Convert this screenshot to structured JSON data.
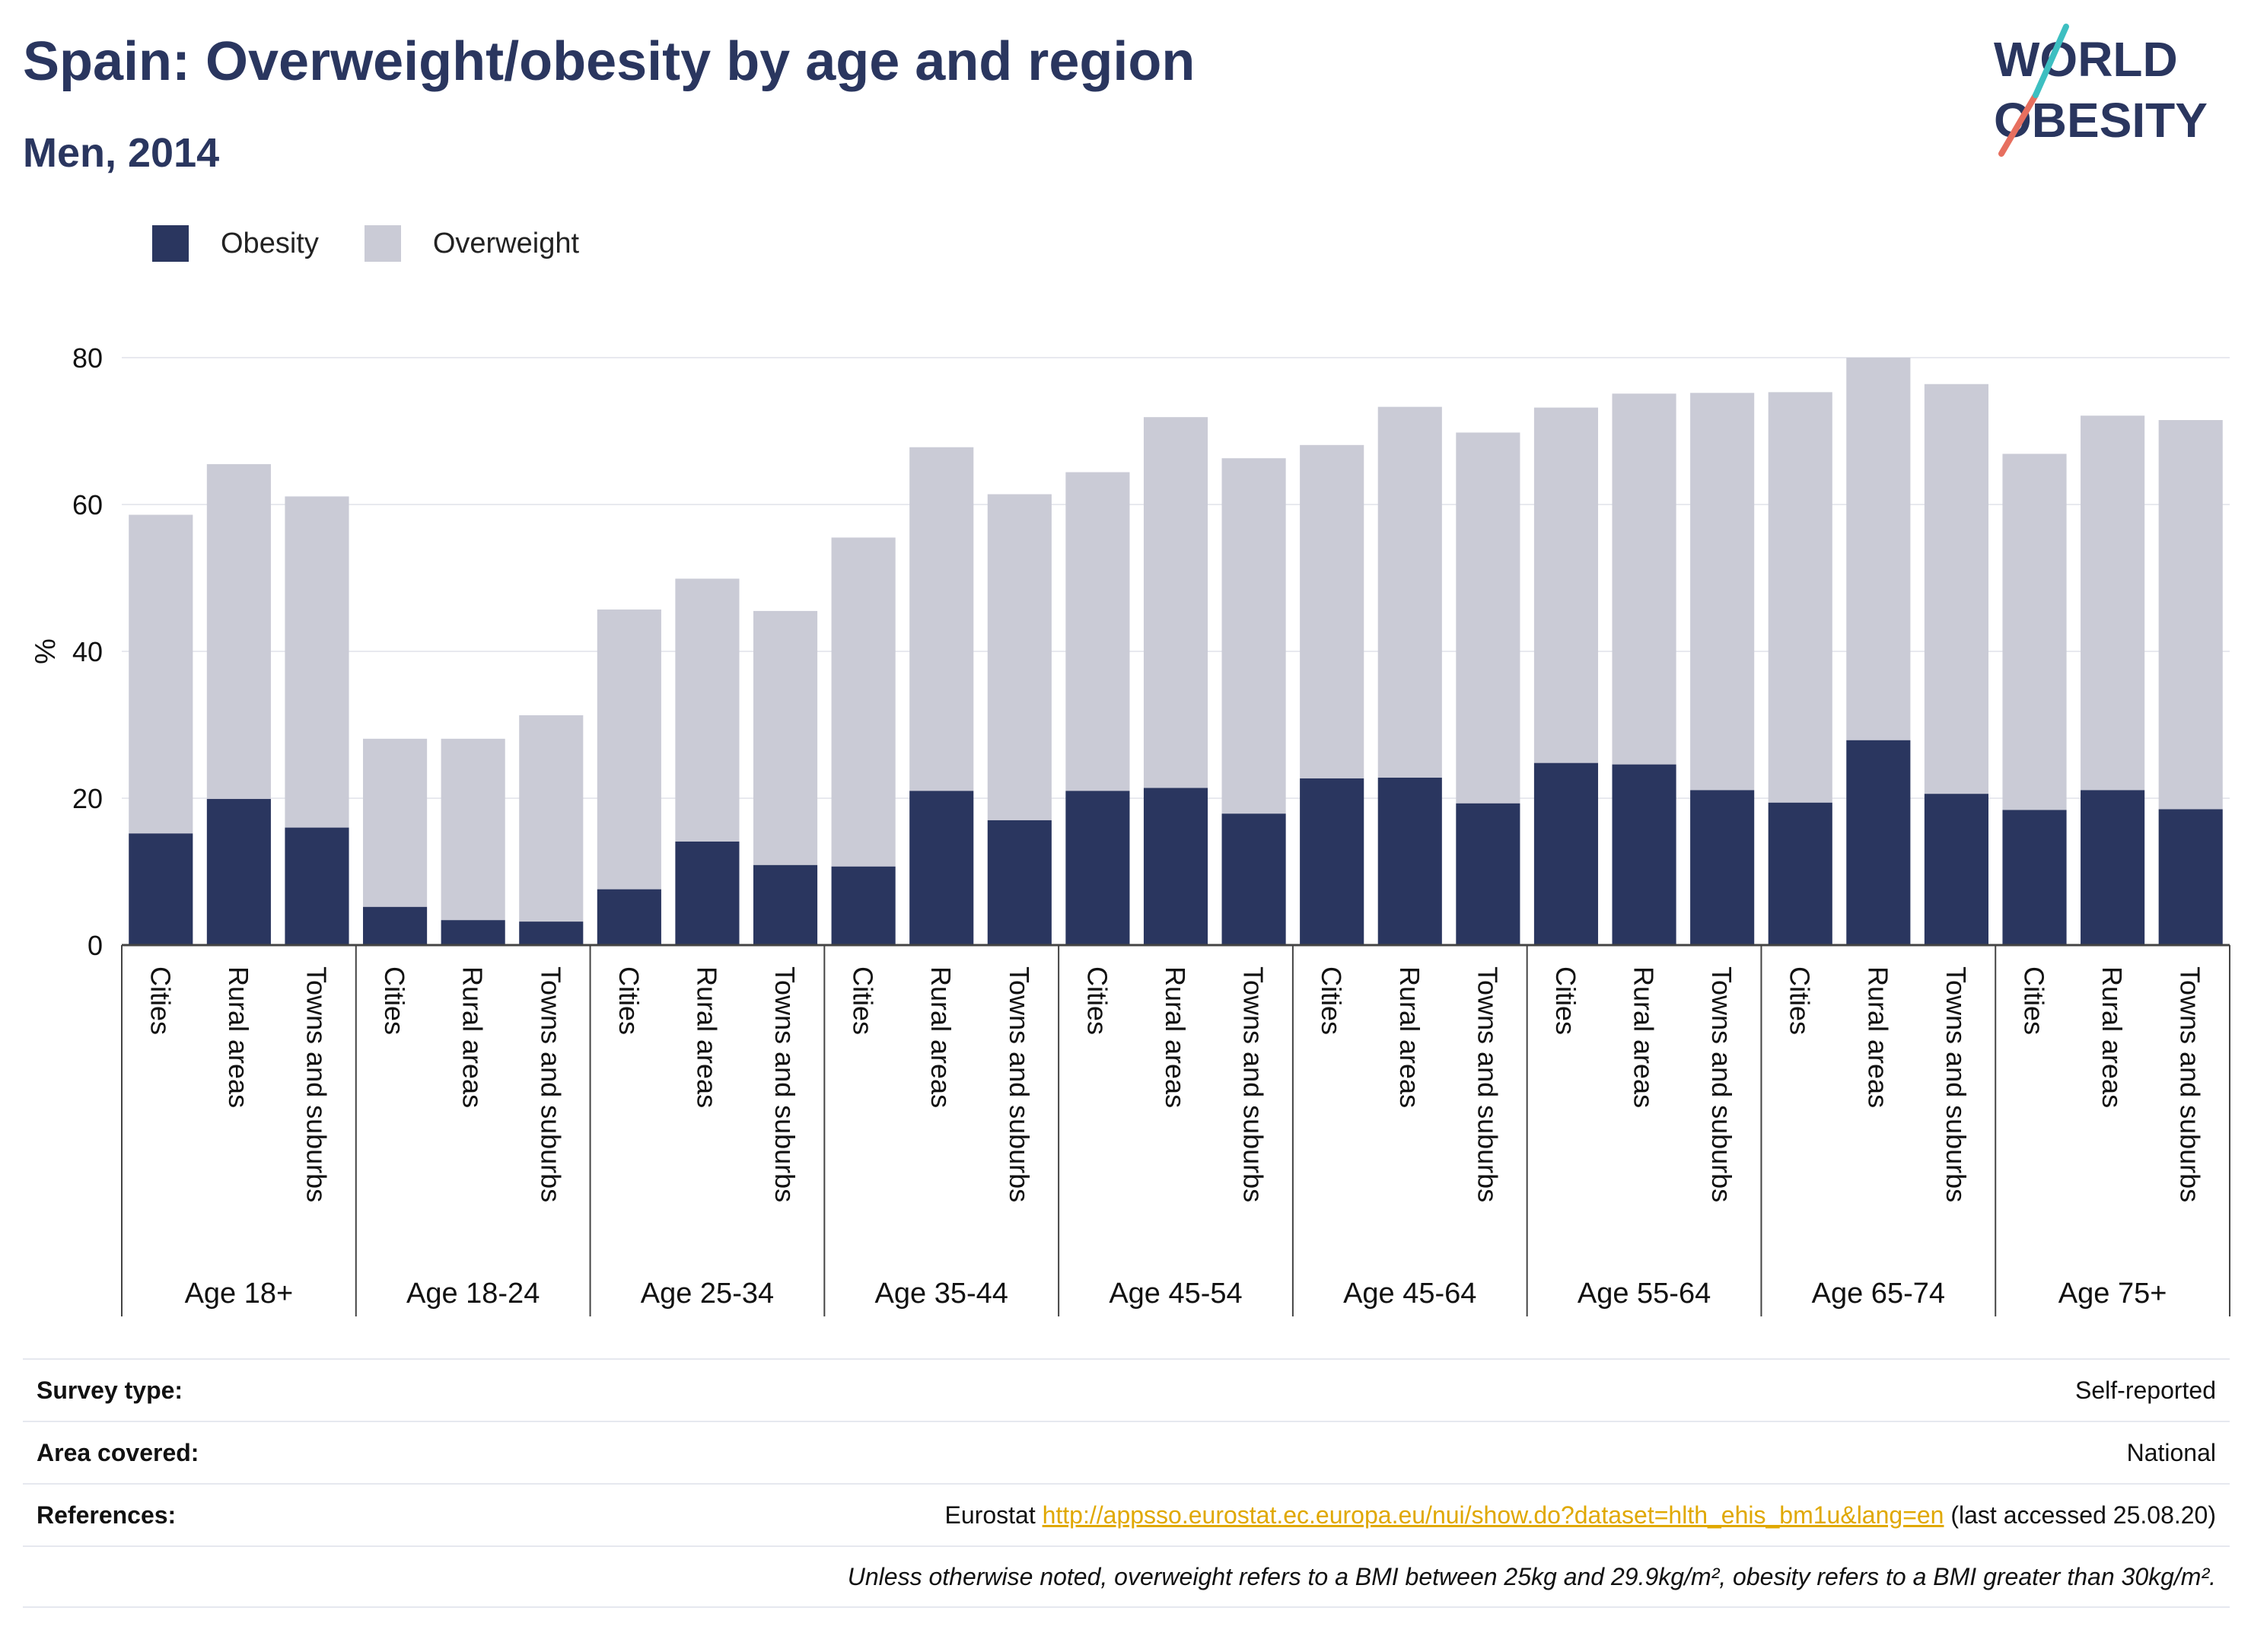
{
  "header": {
    "title": "Spain: Overweight/obesity by age and region",
    "subtitle": "Men, 2014",
    "logo_line1": "WORLD",
    "logo_line2": "OBESITY"
  },
  "legend": [
    {
      "label": "Obesity",
      "color": "#2a365f"
    },
    {
      "label": "Overweight",
      "color": "#cacbd6"
    }
  ],
  "chart_data": {
    "type": "bar",
    "stacked": true,
    "ylabel": "%",
    "xlabel": "",
    "ylim": [
      0,
      80
    ],
    "yticks": [
      0,
      20,
      40,
      60,
      80
    ],
    "grid": true,
    "legend_position": "top-left",
    "groups": [
      {
        "label": "Age 18+",
        "categories": [
          "Cities",
          "Rural areas",
          "Towns and suburbs"
        ],
        "obesity": [
          15.2,
          19.9,
          16.0
        ],
        "total": [
          58.6,
          65.5,
          61.1
        ]
      },
      {
        "label": "Age 18-24",
        "categories": [
          "Cities",
          "Rural areas",
          "Towns and suburbs"
        ],
        "obesity": [
          5.2,
          3.4,
          3.2
        ],
        "total": [
          28.1,
          28.1,
          31.3
        ]
      },
      {
        "label": "Age 25-34",
        "categories": [
          "Cities",
          "Rural areas",
          "Towns and suburbs"
        ],
        "obesity": [
          7.6,
          14.1,
          10.9
        ],
        "total": [
          45.7,
          49.9,
          45.5
        ]
      },
      {
        "label": "Age 35-44",
        "categories": [
          "Cities",
          "Rural areas",
          "Towns and suburbs"
        ],
        "obesity": [
          10.7,
          21.0,
          17.0
        ],
        "total": [
          55.5,
          67.8,
          61.4
        ]
      },
      {
        "label": "Age 45-54",
        "categories": [
          "Cities",
          "Rural areas",
          "Towns and suburbs"
        ],
        "obesity": [
          21.0,
          21.4,
          17.9
        ],
        "total": [
          64.4,
          71.9,
          66.3
        ]
      },
      {
        "label": "Age 45-64",
        "categories": [
          "Cities",
          "Rural areas",
          "Towns and suburbs"
        ],
        "obesity": [
          22.7,
          22.8,
          19.3
        ],
        "total": [
          68.1,
          73.3,
          69.8
        ]
      },
      {
        "label": "Age 55-64",
        "categories": [
          "Cities",
          "Rural areas",
          "Towns and suburbs"
        ],
        "obesity": [
          24.8,
          24.6,
          21.1
        ],
        "total": [
          73.2,
          75.1,
          75.2
        ]
      },
      {
        "label": "Age 65-74",
        "categories": [
          "Cities",
          "Rural areas",
          "Towns and suburbs"
        ],
        "obesity": [
          19.4,
          27.9,
          20.6
        ],
        "total": [
          75.3,
          80.0,
          76.4
        ]
      },
      {
        "label": "Age 75+",
        "categories": [
          "Cities",
          "Rural areas",
          "Towns and suburbs"
        ],
        "obesity": [
          18.4,
          21.1,
          18.5
        ],
        "total": [
          66.9,
          72.1,
          71.5
        ]
      }
    ]
  },
  "info": {
    "survey_label": "Survey type:",
    "survey_value": "Self-reported",
    "area_label": "Area covered:",
    "area_value": "National",
    "references_label": "References:",
    "ref_source": "Eurostat ",
    "ref_url": "http://appsso.eurostat.ec.europa.eu/nui/show.do?dataset=hlth_ehis_bm1u&lang=en",
    "ref_accessed": " (last accessed 25.08.20)",
    "note": "Unless otherwise noted, overweight refers to a BMI between 25kg and 29.9kg/m², obesity refers to a BMI greater than 30kg/m²."
  }
}
